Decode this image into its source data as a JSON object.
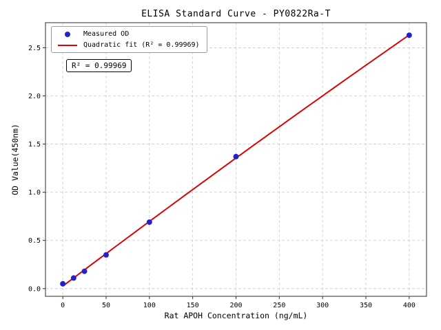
{
  "chart_data": {
    "type": "scatter",
    "title": "ELISA Standard Curve - PY0822Ra-T",
    "xlabel": "Rat APOH Concentration (ng/mL)",
    "ylabel": "OD Value(450nm)",
    "annotation": "R² = 0.99969",
    "series": [
      {
        "name": "Measured OD",
        "type": "scatter",
        "x": [
          0,
          12.5,
          25,
          50,
          100,
          200,
          400
        ],
        "y": [
          0.05,
          0.11,
          0.18,
          0.35,
          0.69,
          1.37,
          2.63
        ]
      },
      {
        "name": "Quadratic fit (R² = 0.99969)",
        "type": "line",
        "fit": "quadratic",
        "r_squared": 0.99969
      }
    ],
    "xticks": [
      0,
      50,
      100,
      150,
      200,
      250,
      300,
      350,
      400
    ],
    "xtick_labels": [
      "0",
      "50",
      "100",
      "150",
      "200",
      "250",
      "300",
      "350",
      "400"
    ],
    "yticks": [
      0,
      0.5,
      1,
      1.5,
      2,
      2.5
    ],
    "ytick_labels": [
      "0.0",
      "0.5",
      "1.0",
      "1.5",
      "2.0",
      "2.5"
    ],
    "xlim": [
      -20,
      420
    ],
    "ylim": [
      -0.08,
      2.76
    ],
    "grid": true,
    "legend_position": "upper left",
    "colors": {
      "points": "#2222cc",
      "fit_line": "#e00000",
      "grid": "#c9c9c9",
      "axes": "#2b2b2b",
      "text": "#000000"
    }
  }
}
